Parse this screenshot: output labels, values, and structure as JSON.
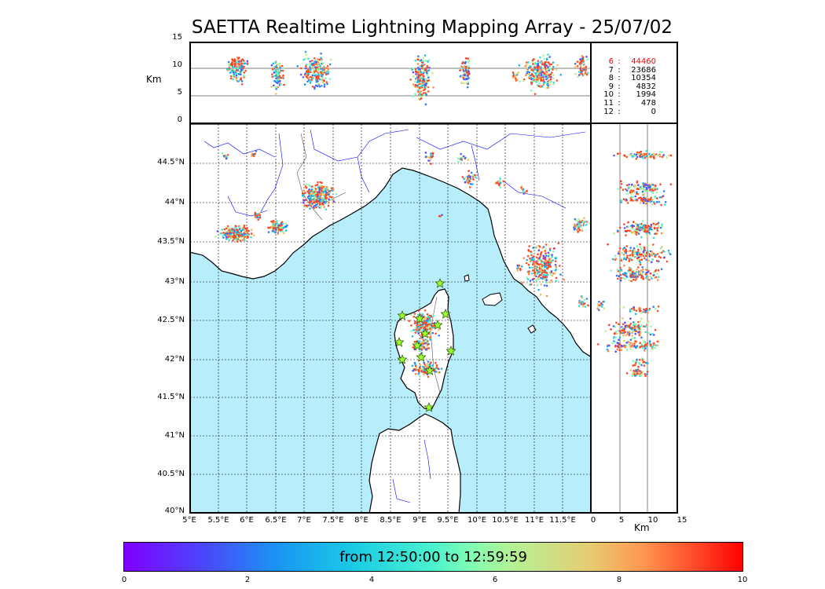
{
  "title": "SAETTA Realtime Lightning Mapping Array - 25/07/02",
  "top_panel": {
    "y_unit": "Km",
    "y_ticks": [
      "15",
      "10",
      "5",
      "0"
    ]
  },
  "right_panel": {
    "x_unit": "Km",
    "x_ticks": [
      "0",
      "5",
      "10",
      "15"
    ]
  },
  "map": {
    "lat_ticks": [
      "44.5°N",
      "44°N",
      "43.5°N",
      "43°N",
      "42.5°N",
      "42°N",
      "41.5°N",
      "41°N",
      "40.5°N",
      "40°N"
    ],
    "lon_ticks": [
      "5°E",
      "5.5°E",
      "6°E",
      "6.5°E",
      "7°E",
      "7.5°E",
      "8°E",
      "8.5°E",
      "9°E",
      "9.5°E",
      "10°E",
      "10.5°E",
      "11°E",
      "11.5°E"
    ],
    "sea_color": "#b8eefb",
    "land_color": "#ffffff",
    "river_color": "#0000ff",
    "station_marker_color": "#9aff2a",
    "station_marker_shape": "star"
  },
  "stats": [
    {
      "level": "6",
      "sep": ":",
      "count": "44460",
      "highlight": true
    },
    {
      "level": "7",
      "sep": ":",
      "count": "23686",
      "highlight": false
    },
    {
      "level": "8",
      "sep": ":",
      "count": "10354",
      "highlight": false
    },
    {
      "level": "9",
      "sep": ":",
      "count": "4832",
      "highlight": false
    },
    {
      "level": "10",
      "sep": ":",
      "count": "1994",
      "highlight": false
    },
    {
      "level": "11",
      "sep": ":",
      "count": "478",
      "highlight": false
    },
    {
      "level": "12",
      "sep": ":",
      "count": "0",
      "highlight": false
    }
  ],
  "highlight_color": "#ff0000",
  "colorbar": {
    "label": "from 12:50:00 to 12:59:59",
    "ticks": [
      "0",
      "2",
      "4",
      "6",
      "8",
      "10"
    ]
  }
}
